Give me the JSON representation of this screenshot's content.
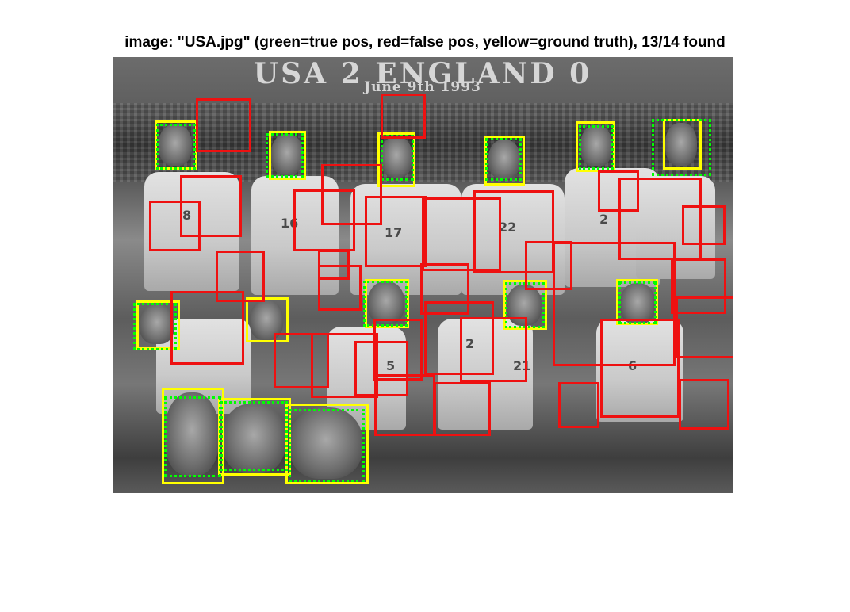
{
  "figure": {
    "title": "image: \"USA.jpg\" (green=true pos, red=false pos, yellow=ground truth), 13/14 found"
  },
  "photo": {
    "banner_line1": "USA 2 ENGLAND 0",
    "banner_line2": "June 9th 1993",
    "jersey_numbers": [
      "8",
      "16",
      "17",
      "22",
      "2",
      "2",
      "21",
      "5",
      "6"
    ]
  },
  "legend": {
    "true_positive_color": "#00ff00",
    "false_positive_color": "#ff0000",
    "ground_truth_color": "#ffff00"
  },
  "detection_summary": {
    "found": 13,
    "total": 14
  }
}
